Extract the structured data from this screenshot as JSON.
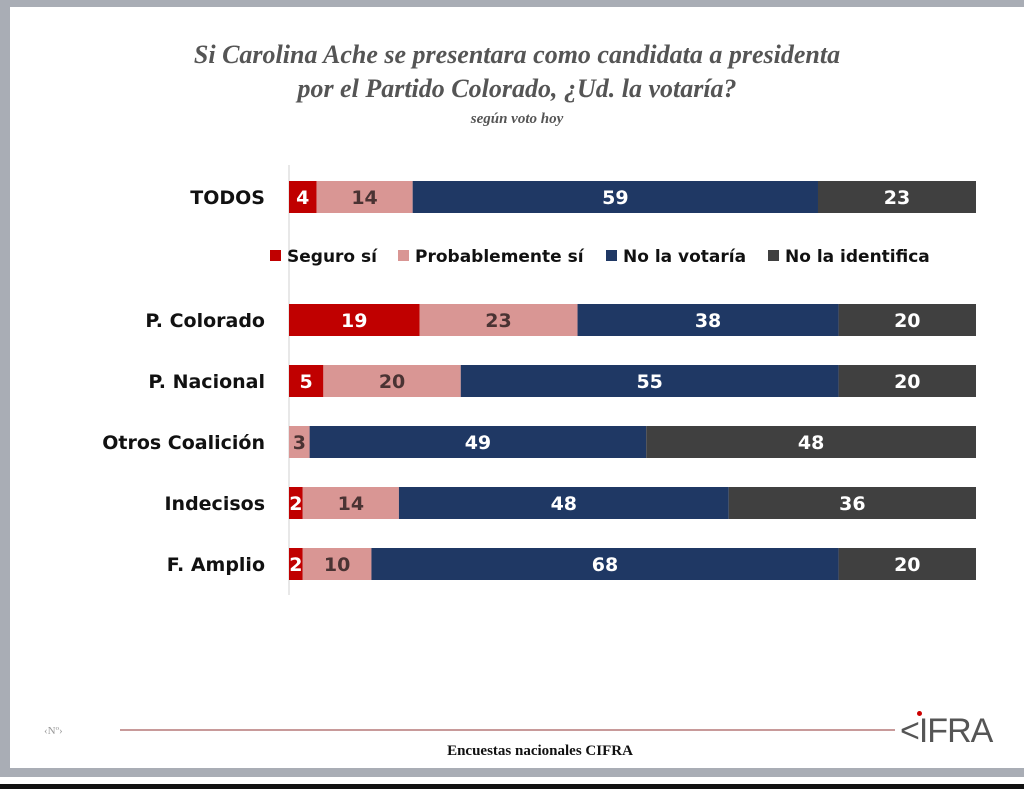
{
  "chart_data": {
    "type": "bar",
    "orientation": "horizontal-stacked-100",
    "title": "Si Carolina Ache se presentara como candidata a presidenta por el Partido Colorado, ¿Ud. la votaría?",
    "title_lines": [
      "Si Carolina Ache se presentara como candidata a presidenta",
      "por el Partido Colorado, ¿Ud. la votaría?"
    ],
    "subtitle": "según voto hoy",
    "legend_placement": "between first and second rows",
    "categories": [
      "TODOS",
      "P. Colorado",
      "P. Nacional",
      "Otros Coalición",
      "Indecisos",
      "F. Amplio"
    ],
    "series": [
      {
        "name": "Seguro sí",
        "color": "#c00000",
        "label_color": "#ffffff",
        "values": [
          4,
          19,
          5,
          0,
          2,
          2
        ]
      },
      {
        "name": "Probablemente sí",
        "color": "#d99694",
        "label_color": "#4a3333",
        "values": [
          14,
          23,
          20,
          3,
          14,
          10
        ]
      },
      {
        "name": "No la votaría",
        "color": "#1f3864",
        "label_color": "#ffffff",
        "values": [
          59,
          38,
          55,
          49,
          48,
          68
        ]
      },
      {
        "name": "No la identifica",
        "color": "#404040",
        "label_color": "#ffffff",
        "values": [
          23,
          20,
          20,
          48,
          36,
          20
        ]
      }
    ],
    "xlim": [
      0,
      100
    ],
    "grid": false
  },
  "footer": {
    "source": "Encuestas nacionales CIFRA",
    "page_number": "‹Nº›",
    "logo": "CIFRA"
  }
}
